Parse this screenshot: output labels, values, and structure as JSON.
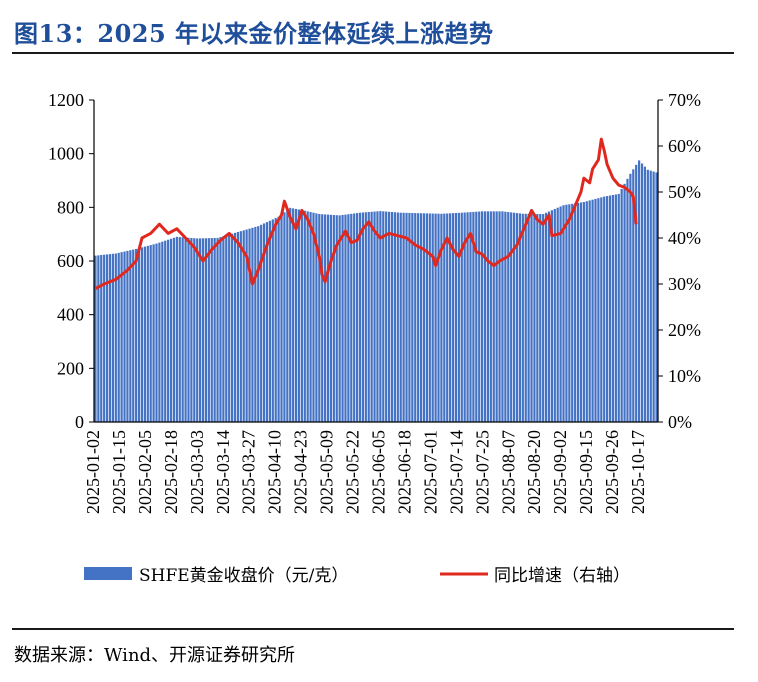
{
  "title": "图13：2025 年以来金价整体延续上涨趋势",
  "source": "数据来源：Wind、开源证券研究所",
  "chart_data": {
    "type": "bar+line",
    "left_axis": {
      "ticks": [
        "0",
        "200",
        "400",
        "600",
        "800",
        "1000",
        "1200"
      ],
      "ylim": [
        0,
        1200
      ]
    },
    "right_axis": {
      "ticks": [
        "0%",
        "10%",
        "20%",
        "30%",
        "40%",
        "50%",
        "60%",
        "70%"
      ],
      "ylim": [
        0,
        70
      ]
    },
    "x_tick_labels": [
      "2025-01-02",
      "2025-01-15",
      "2025-02-05",
      "2025-02-18",
      "2025-03-03",
      "2025-03-14",
      "2025-03-27",
      "2025-04-10",
      "2025-04-23",
      "2025-05-09",
      "2025-05-22",
      "2025-06-05",
      "2025-06-18",
      "2025-07-01",
      "2025-07-14",
      "2025-07-25",
      "2025-08-07",
      "2025-08-20",
      "2025-09-02",
      "2025-09-15",
      "2025-09-26",
      "2025-10-17"
    ],
    "series": [
      {
        "name": "SHFE黄金收盘价（元/克）",
        "axis": "left",
        "color": "#4472c4",
        "anchors": [
          [
            0,
            620
          ],
          [
            7,
            628
          ],
          [
            14,
            645
          ],
          [
            21,
            665
          ],
          [
            28,
            690
          ],
          [
            35,
            684
          ],
          [
            42,
            686
          ],
          [
            49,
            708
          ],
          [
            56,
            730
          ],
          [
            63,
            765
          ],
          [
            67,
            798
          ],
          [
            71,
            790
          ],
          [
            77,
            775
          ],
          [
            84,
            770
          ],
          [
            91,
            780
          ],
          [
            98,
            786
          ],
          [
            105,
            780
          ],
          [
            112,
            778
          ],
          [
            119,
            776
          ],
          [
            126,
            780
          ],
          [
            133,
            785
          ],
          [
            140,
            785
          ],
          [
            147,
            776
          ],
          [
            154,
            775
          ],
          [
            161,
            808
          ],
          [
            168,
            820
          ],
          [
            175,
            840
          ],
          [
            180,
            850
          ],
          [
            184,
            925
          ],
          [
            187,
            975
          ],
          [
            190,
            940
          ],
          [
            193,
            930
          ]
        ]
      },
      {
        "name": "同比增速（右轴）",
        "axis": "right",
        "color": "#e0281e",
        "anchors": [
          [
            0,
            29
          ],
          [
            3,
            30
          ],
          [
            7,
            31
          ],
          [
            11,
            33
          ],
          [
            14,
            35
          ],
          [
            16,
            40
          ],
          [
            19,
            41
          ],
          [
            22,
            43
          ],
          [
            25,
            41
          ],
          [
            28,
            42
          ],
          [
            31,
            40
          ],
          [
            34,
            38
          ],
          [
            37,
            35
          ],
          [
            40,
            37.5
          ],
          [
            43,
            39.5
          ],
          [
            46,
            41
          ],
          [
            49,
            39
          ],
          [
            52,
            36
          ],
          [
            54,
            30
          ],
          [
            56,
            33
          ],
          [
            59,
            38.5
          ],
          [
            62,
            43
          ],
          [
            64,
            45
          ],
          [
            65,
            48
          ],
          [
            67,
            44.5
          ],
          [
            69,
            42
          ],
          [
            71,
            46
          ],
          [
            73,
            44
          ],
          [
            75,
            41
          ],
          [
            77,
            36
          ],
          [
            78,
            32
          ],
          [
            79,
            30.5
          ],
          [
            81,
            35
          ],
          [
            83,
            38.5
          ],
          [
            86,
            41.5
          ],
          [
            88,
            39
          ],
          [
            90,
            39.5
          ],
          [
            92,
            42
          ],
          [
            94,
            43.5
          ],
          [
            96,
            41.5
          ],
          [
            98,
            40
          ],
          [
            101,
            41
          ],
          [
            104,
            40.5
          ],
          [
            107,
            40
          ],
          [
            110,
            38.5
          ],
          [
            113,
            37.5
          ],
          [
            116,
            36
          ],
          [
            117,
            34
          ],
          [
            119,
            37.5
          ],
          [
            121,
            40
          ],
          [
            123,
            37.5
          ],
          [
            125,
            36
          ],
          [
            127,
            39
          ],
          [
            129,
            41
          ],
          [
            131,
            37
          ],
          [
            133,
            36.5
          ],
          [
            135,
            35
          ],
          [
            137,
            34
          ],
          [
            139,
            35
          ],
          [
            142,
            36
          ],
          [
            145,
            38.5
          ],
          [
            148,
            43
          ],
          [
            150,
            46
          ],
          [
            152,
            44
          ],
          [
            154,
            43
          ],
          [
            156,
            45
          ],
          [
            157,
            40.5
          ],
          [
            160,
            41
          ],
          [
            163,
            44
          ],
          [
            165,
            47
          ],
          [
            167,
            50
          ],
          [
            168,
            53
          ],
          [
            170,
            52
          ],
          [
            171,
            55
          ],
          [
            173,
            57
          ],
          [
            174,
            61.5
          ],
          [
            175,
            59
          ],
          [
            176,
            56
          ],
          [
            178,
            53
          ],
          [
            180,
            51.5
          ],
          [
            182,
            51
          ],
          [
            184,
            50
          ],
          [
            185,
            49
          ],
          [
            186,
            43
          ]
        ]
      }
    ],
    "legend_position": "bottom"
  }
}
